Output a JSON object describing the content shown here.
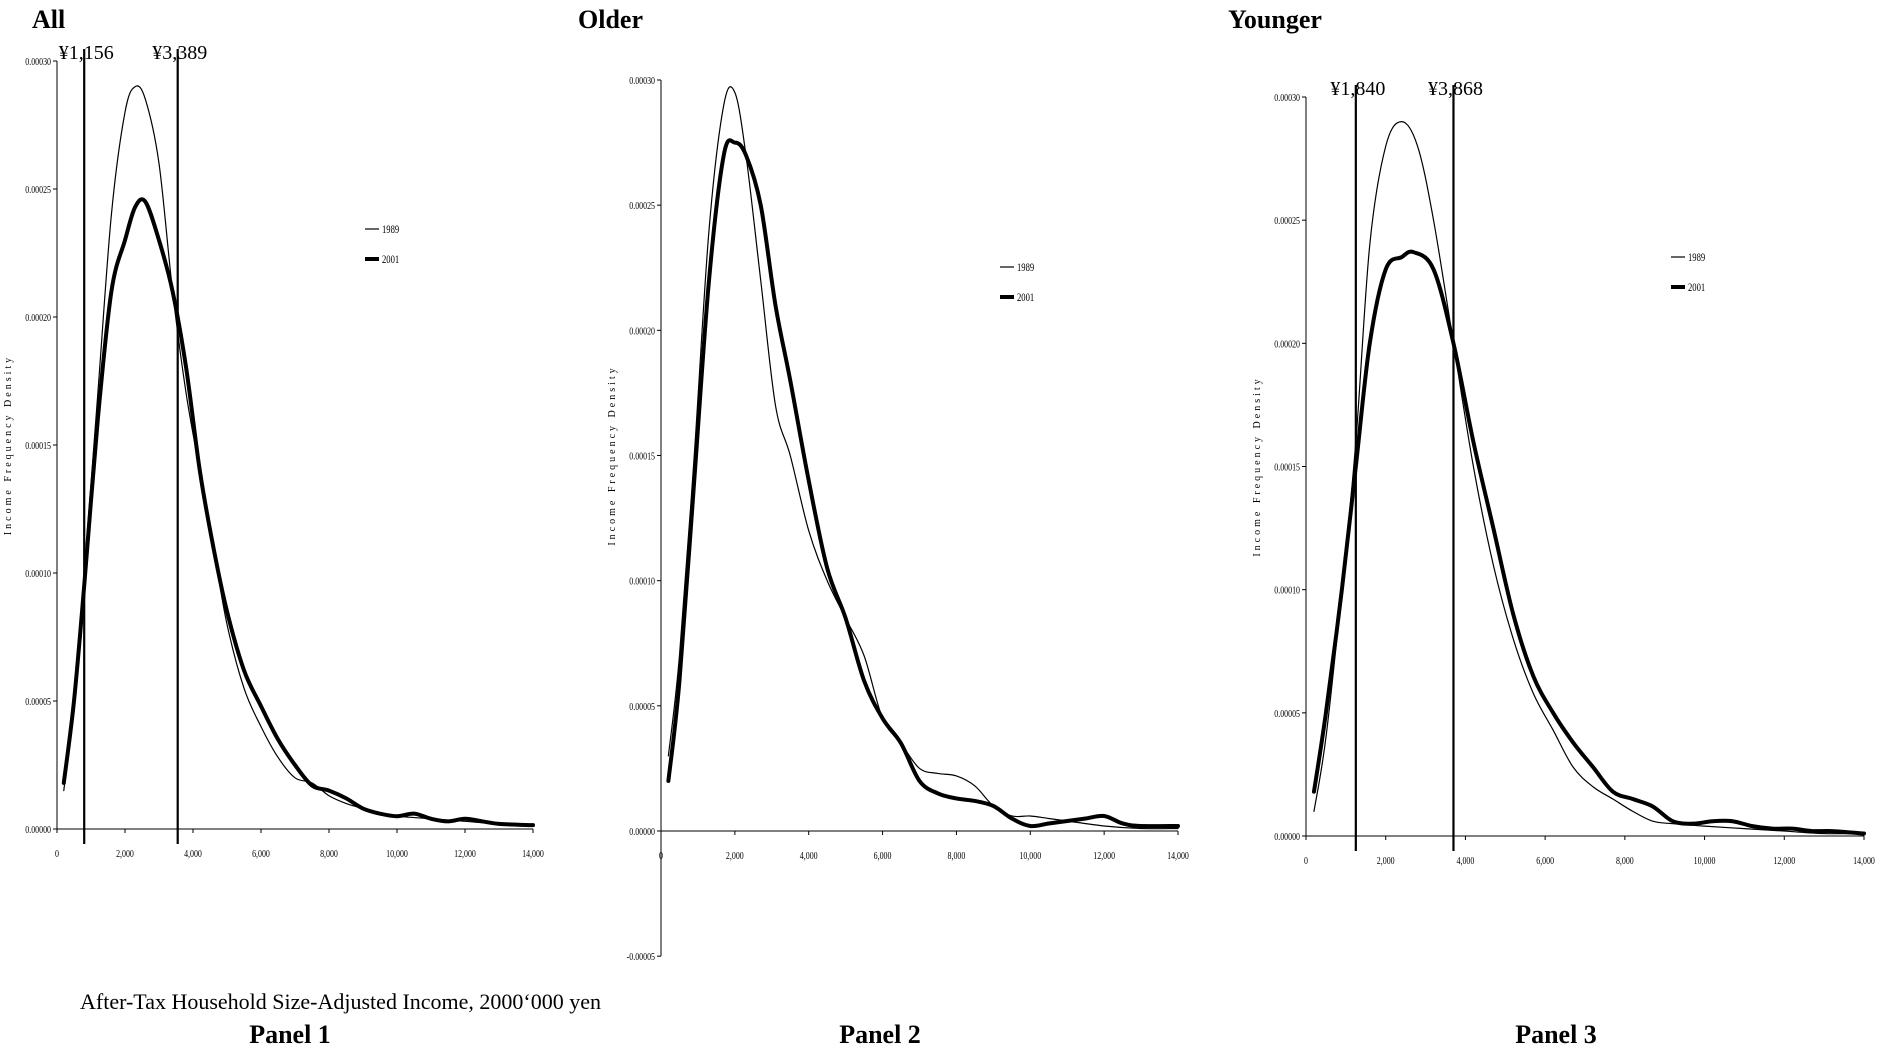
{
  "figure": {
    "x_caption": "After-Tax Household Size-Adjusted Income, 2000‘000 yen"
  },
  "chart_data": [
    {
      "type": "line",
      "title": "All",
      "panel_label": "Panel 1",
      "ylabel": "Income Frequency Density",
      "xlim": [
        0,
        14000
      ],
      "ylim": [
        0,
        0.0003
      ],
      "x_ticks": [
        0,
        2000,
        4000,
        6000,
        8000,
        10000,
        12000,
        14000
      ],
      "x_tick_labels": [
        "0",
        "2,000",
        "4,000",
        "6,000",
        "8,000",
        "10,000",
        "12,000",
        "14,000"
      ],
      "y_ticks": [
        0,
        5e-05,
        0.0001,
        0.00015,
        0.0002,
        0.00025,
        0.0003
      ],
      "y_tick_labels": [
        "0.00000",
        "0.00005",
        "0.00010",
        "0.00015",
        "0.00020",
        "0.00025",
        "0.00030"
      ],
      "vlines": [
        {
          "x": 800,
          "label": "¥1,156"
        },
        {
          "x": 3550,
          "label": "¥3,389"
        }
      ],
      "legend": {
        "position": "top-right"
      },
      "series": [
        {
          "name": "1989",
          "style": "thin",
          "x": [
            200,
            500,
            800,
            1200,
            1600,
            2000,
            2300,
            2600,
            3000,
            3400,
            3800,
            4200,
            4600,
            5000,
            5500,
            6000,
            6500,
            7000,
            7500,
            8000,
            8500,
            9000,
            9500,
            10000,
            11000,
            12000,
            13000,
            14000
          ],
          "values": [
            1.5e-05,
            5e-05,
            0.0001,
            0.00017,
            0.00024,
            0.00028,
            0.00029,
            0.000285,
            0.00026,
            0.00021,
            0.00017,
            0.00014,
            0.00011,
            8e-05,
            5.5e-05,
            4e-05,
            2.8e-05,
            2e-05,
            1.8e-05,
            1.3e-05,
            1e-05,
            8e-06,
            6e-06,
            5e-06,
            4e-06,
            3e-06,
            2e-06,
            1.5e-06
          ]
        },
        {
          "name": "2001",
          "style": "thick",
          "x": [
            200,
            500,
            800,
            1200,
            1600,
            2000,
            2300,
            2600,
            3000,
            3400,
            3800,
            4200,
            4600,
            5000,
            5500,
            6000,
            6500,
            7000,
            7500,
            8000,
            8500,
            9000,
            9500,
            10000,
            10500,
            11000,
            11500,
            12000,
            12500,
            13000,
            14000
          ],
          "values": [
            1.8e-05,
            5e-05,
            9.5e-05,
            0.00016,
            0.00021,
            0.00023,
            0.000243,
            0.000245,
            0.00023,
            0.00021,
            0.00018,
            0.00014,
            0.00011,
            8.5e-05,
            6.2e-05,
            4.8e-05,
            3.5e-05,
            2.5e-05,
            1.7e-05,
            1.5e-05,
            1.2e-05,
            8e-06,
            6e-06,
            5e-06,
            6e-06,
            4e-06,
            3e-06,
            4e-06,
            3e-06,
            2e-06,
            1.5e-06
          ]
        }
      ]
    },
    {
      "type": "line",
      "title": "Older",
      "panel_label": "Panel 2",
      "ylabel": "Income Frequency Density",
      "xlim": [
        0,
        14000
      ],
      "ylim": [
        -5e-05,
        0.0003
      ],
      "x_ticks": [
        0,
        2000,
        4000,
        6000,
        8000,
        10000,
        12000,
        14000
      ],
      "x_tick_labels": [
        "0",
        "2,000",
        "4,000",
        "6,000",
        "8,000",
        "10,000",
        "12,000",
        "14,000"
      ],
      "y_ticks": [
        -5e-05,
        0,
        5e-05,
        0.0001,
        0.00015,
        0.0002,
        0.00025,
        0.0003
      ],
      "y_tick_labels": [
        "-0.00005",
        "0.00000",
        "0.00005",
        "0.00010",
        "0.00015",
        "0.00020",
        "0.00025",
        "0.00030"
      ],
      "vlines": [],
      "legend": {
        "position": "top-right"
      },
      "series": [
        {
          "name": "1989",
          "style": "thin",
          "x": [
            200,
            500,
            900,
            1300,
            1700,
            2000,
            2300,
            2700,
            3100,
            3500,
            4000,
            4500,
            5000,
            5500,
            6000,
            6500,
            7000,
            7500,
            8000,
            8500,
            9000,
            9500,
            10000,
            10500,
            11000,
            12000,
            13000,
            14000
          ],
          "values": [
            3e-05,
            7e-05,
            0.00015,
            0.00024,
            0.00029,
            0.000295,
            0.00027,
            0.00022,
            0.00017,
            0.00015,
            0.00012,
            0.0001,
            8.5e-05,
            7e-05,
            4.5e-05,
            3.5e-05,
            2.5e-05,
            2.3e-05,
            2.2e-05,
            1.8e-05,
            1e-05,
            6e-06,
            6e-06,
            5e-06,
            4e-06,
            2e-06,
            1e-06,
            1e-06
          ]
        },
        {
          "name": "2001",
          "style": "thick",
          "x": [
            200,
            500,
            900,
            1300,
            1700,
            2000,
            2300,
            2700,
            3100,
            3500,
            4000,
            4500,
            5000,
            5500,
            6000,
            6500,
            7000,
            7500,
            8000,
            8500,
            9000,
            9500,
            10000,
            10500,
            11000,
            11500,
            12000,
            12500,
            13000,
            14000
          ],
          "values": [
            2e-05,
            6e-05,
            0.00014,
            0.00022,
            0.00027,
            0.000275,
            0.00027,
            0.00025,
            0.00021,
            0.00018,
            0.00014,
            0.000105,
            8.5e-05,
            6e-05,
            4.5e-05,
            3.5e-05,
            2e-05,
            1.5e-05,
            1.3e-05,
            1.2e-05,
            1e-05,
            5e-06,
            2e-06,
            3e-06,
            4e-06,
            5e-06,
            6e-06,
            3e-06,
            2e-06,
            2e-06
          ]
        }
      ]
    },
    {
      "type": "line",
      "title": "Younger",
      "panel_label": "Panel 3",
      "ylabel": "Income Frequency Density",
      "xlim": [
        0,
        14000
      ],
      "ylim": [
        0,
        0.0003
      ],
      "x_ticks": [
        0,
        2000,
        4000,
        6000,
        8000,
        10000,
        12000,
        14000
      ],
      "x_tick_labels": [
        "0",
        "2,000",
        "4,000",
        "6,000",
        "8,000",
        "10,000",
        "12,000",
        "14,000"
      ],
      "y_ticks": [
        0,
        5e-05,
        0.0001,
        0.00015,
        0.0002,
        0.00025,
        0.0003
      ],
      "y_tick_labels": [
        "0.00000",
        "0.00005",
        "0.00010",
        "0.00015",
        "0.00020",
        "0.00025",
        "0.00030"
      ],
      "vlines": [
        {
          "x": 1250,
          "label": "¥1,840"
        },
        {
          "x": 3700,
          "label": "¥3,868"
        }
      ],
      "legend": {
        "position": "top-right"
      },
      "series": [
        {
          "name": "1989",
          "style": "thin",
          "x": [
            200,
            500,
            900,
            1250,
            1600,
            2000,
            2400,
            2800,
            3200,
            3700,
            4200,
            4700,
            5200,
            5700,
            6200,
            6700,
            7200,
            7700,
            8200,
            8700,
            9200,
            10000,
            11000,
            12000,
            13000,
            14000
          ],
          "values": [
            1e-05,
            4e-05,
            0.0001,
            0.00016,
            0.00024,
            0.00028,
            0.00029,
            0.00028,
            0.00025,
            0.0002,
            0.00015,
            0.00011,
            8e-05,
            5.8e-05,
            4.3e-05,
            2.8e-05,
            2e-05,
            1.5e-05,
            1e-05,
            6e-06,
            5e-06,
            4e-06,
            3e-06,
            2e-06,
            1e-06,
            1e-06
          ]
        },
        {
          "name": "2001",
          "style": "thick",
          "x": [
            200,
            500,
            900,
            1250,
            1600,
            2000,
            2400,
            2700,
            3200,
            3700,
            4200,
            4700,
            5200,
            5700,
            6200,
            6700,
            7200,
            7700,
            8200,
            8700,
            9200,
            9700,
            10200,
            10700,
            11200,
            11700,
            12200,
            12700,
            13200,
            14000
          ],
          "values": [
            1.8e-05,
            5e-05,
            0.0001,
            0.00015,
            0.0002,
            0.00023,
            0.000235,
            0.000237,
            0.00023,
            0.0002,
            0.00016,
            0.000125,
            9e-05,
            6.5e-05,
            5e-05,
            3.8e-05,
            2.8e-05,
            1.8e-05,
            1.5e-05,
            1.2e-05,
            6e-06,
            5e-06,
            6e-06,
            6e-06,
            4e-06,
            3e-06,
            3e-06,
            2e-06,
            2e-06,
            1e-06
          ]
        }
      ]
    }
  ]
}
